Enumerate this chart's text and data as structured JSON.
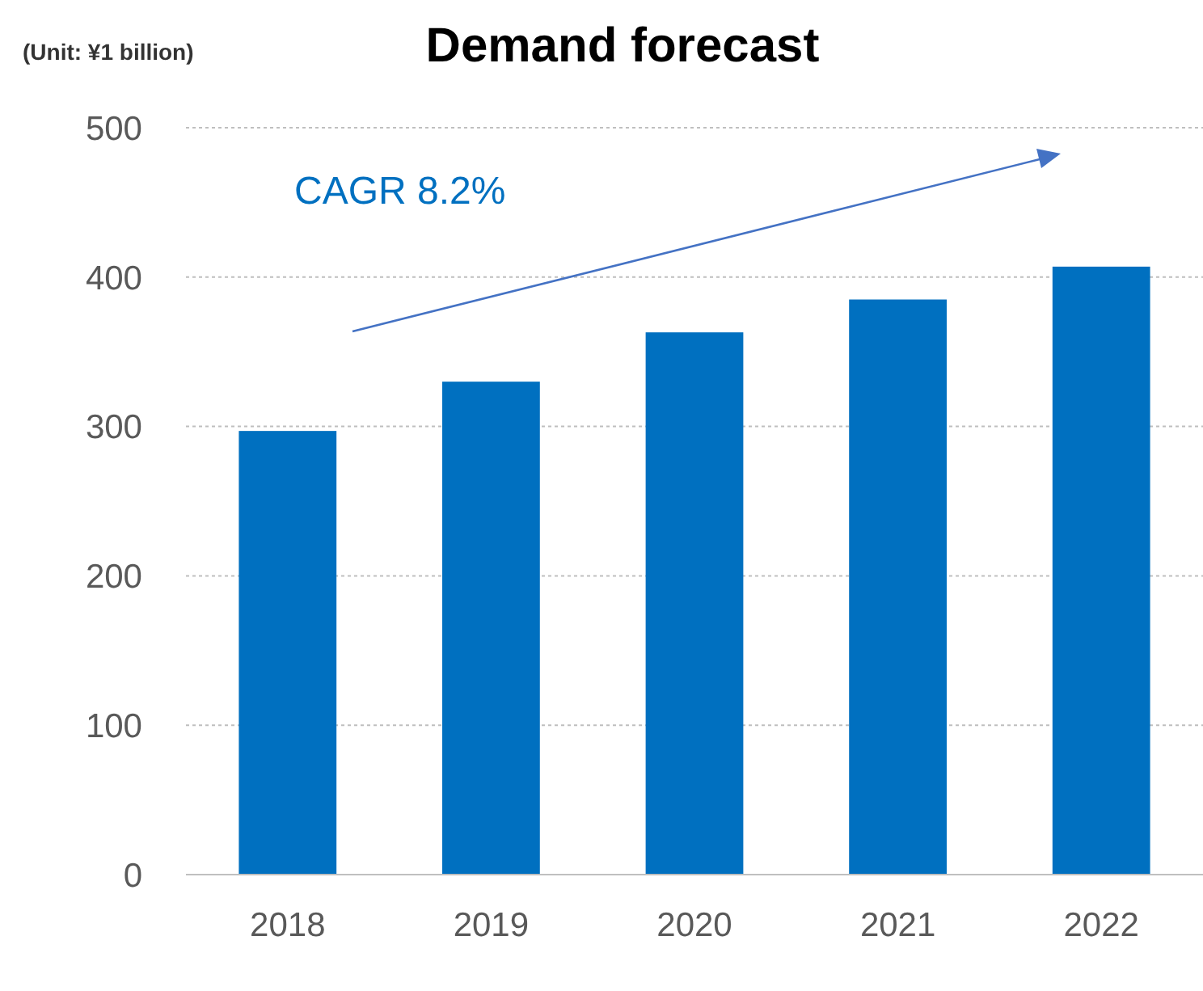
{
  "chart_data": {
    "type": "bar",
    "title": "Demand forecast",
    "ylabel": "(Unit: ¥1 billion)",
    "categories": [
      "2018",
      "2019",
      "2020",
      "2021",
      "2022"
    ],
    "values": [
      297,
      330,
      363,
      385,
      407
    ],
    "color": "#0070c0",
    "ylim": [
      0,
      500
    ],
    "yticks": [
      0,
      100,
      200,
      300,
      400,
      500
    ],
    "grid": "y",
    "annotations": [
      "CAGR 8.2%"
    ]
  }
}
